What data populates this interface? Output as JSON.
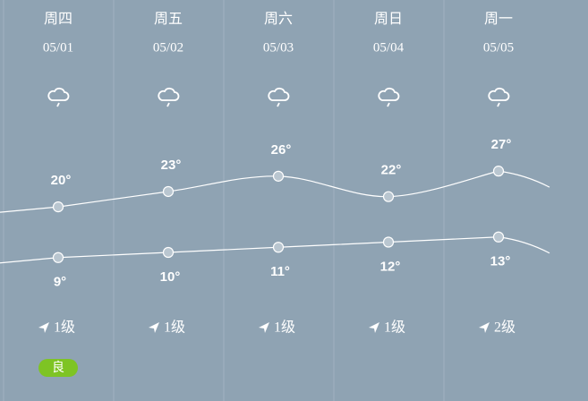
{
  "days": [
    {
      "weekday": "周四",
      "date": "05/01",
      "high": {
        "value": 20,
        "label": "20°"
      },
      "low": {
        "value": 9,
        "label": "9°"
      },
      "wind": "1级",
      "aqi": "良"
    },
    {
      "weekday": "周五",
      "date": "05/02",
      "high": {
        "value": 23,
        "label": "23°"
      },
      "low": {
        "value": 10,
        "label": "10°"
      },
      "wind": "1级"
    },
    {
      "weekday": "周六",
      "date": "05/03",
      "high": {
        "value": 26,
        "label": "26°"
      },
      "low": {
        "value": 11,
        "label": "11°"
      },
      "wind": "1级"
    },
    {
      "weekday": "周日",
      "date": "05/04",
      "high": {
        "value": 22,
        "label": "22°"
      },
      "low": {
        "value": 12,
        "label": "12°"
      },
      "wind": "1级"
    },
    {
      "weekday": "周一",
      "date": "05/05",
      "high": {
        "value": 27,
        "label": "27°"
      },
      "low": {
        "value": 13,
        "label": "13°"
      },
      "wind": "2级"
    }
  ]
}
